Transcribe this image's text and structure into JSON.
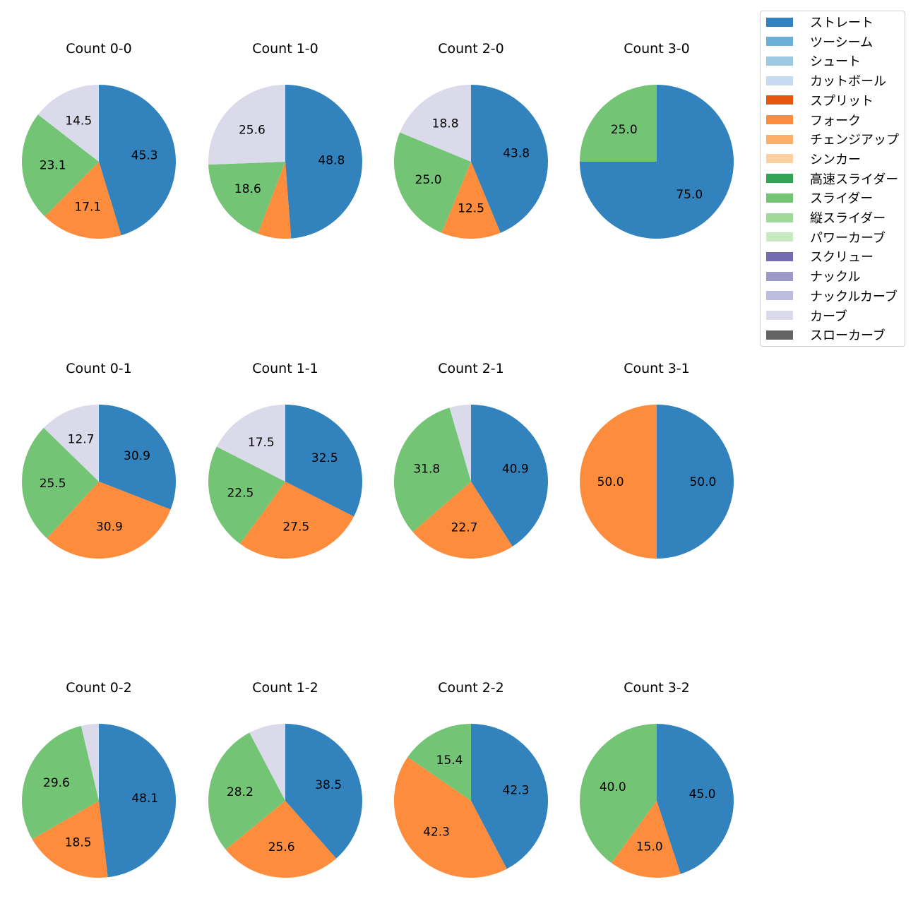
{
  "legend": {
    "items": [
      {
        "label": "ストレート",
        "color": "#3182bd"
      },
      {
        "label": "ツーシーム",
        "color": "#6baed6"
      },
      {
        "label": "シュート",
        "color": "#9ecae1"
      },
      {
        "label": "カットボール",
        "color": "#c6dbef"
      },
      {
        "label": "スプリット",
        "color": "#e6550d"
      },
      {
        "label": "フォーク",
        "color": "#fd8d3c"
      },
      {
        "label": "チェンジアップ",
        "color": "#fdae6b"
      },
      {
        "label": "シンカー",
        "color": "#fdd0a2"
      },
      {
        "label": "高速スライダー",
        "color": "#31a354"
      },
      {
        "label": "スライダー",
        "color": "#74c476"
      },
      {
        "label": "縦スライダー",
        "color": "#a1d99b"
      },
      {
        "label": "パワーカーブ",
        "color": "#c7e9c0"
      },
      {
        "label": "スクリュー",
        "color": "#756bb1"
      },
      {
        "label": "ナックル",
        "color": "#9e9ac8"
      },
      {
        "label": "ナックルカーブ",
        "color": "#bcbddc"
      },
      {
        "label": "カーブ",
        "color": "#dadaeb"
      },
      {
        "label": "スローカーブ",
        "color": "#636363"
      }
    ]
  },
  "chart_data": [
    {
      "type": "pie",
      "title": "Count 0-0",
      "slices": [
        {
          "category": "ストレート",
          "value": 45.3,
          "label": "45.3"
        },
        {
          "category": "フォーク",
          "value": 17.1,
          "label": "17.1"
        },
        {
          "category": "スライダー",
          "value": 23.1,
          "label": "23.1"
        },
        {
          "category": "カーブ",
          "value": 14.5,
          "label": "14.5"
        }
      ]
    },
    {
      "type": "pie",
      "title": "Count 1-0",
      "slices": [
        {
          "category": "ストレート",
          "value": 48.8,
          "label": "48.8"
        },
        {
          "category": "フォーク",
          "value": 7.0,
          "label": ""
        },
        {
          "category": "スライダー",
          "value": 18.6,
          "label": "18.6"
        },
        {
          "category": "カーブ",
          "value": 25.6,
          "label": "25.6"
        }
      ]
    },
    {
      "type": "pie",
      "title": "Count 2-0",
      "slices": [
        {
          "category": "ストレート",
          "value": 43.8,
          "label": "43.8"
        },
        {
          "category": "フォーク",
          "value": 12.5,
          "label": "12.5"
        },
        {
          "category": "スライダー",
          "value": 25.0,
          "label": "25.0"
        },
        {
          "category": "カーブ",
          "value": 18.8,
          "label": "18.8"
        }
      ]
    },
    {
      "type": "pie",
      "title": "Count 3-0",
      "slices": [
        {
          "category": "ストレート",
          "value": 75.0,
          "label": "75.0"
        },
        {
          "category": "スライダー",
          "value": 25.0,
          "label": "25.0"
        }
      ]
    },
    {
      "type": "pie",
      "title": "Count 0-1",
      "slices": [
        {
          "category": "ストレート",
          "value": 30.9,
          "label": "30.9"
        },
        {
          "category": "フォーク",
          "value": 30.9,
          "label": "30.9"
        },
        {
          "category": "スライダー",
          "value": 25.5,
          "label": "25.5"
        },
        {
          "category": "カーブ",
          "value": 12.7,
          "label": "12.7"
        }
      ]
    },
    {
      "type": "pie",
      "title": "Count 1-1",
      "slices": [
        {
          "category": "ストレート",
          "value": 32.5,
          "label": "32.5"
        },
        {
          "category": "フォーク",
          "value": 27.5,
          "label": "27.5"
        },
        {
          "category": "スライダー",
          "value": 22.5,
          "label": "22.5"
        },
        {
          "category": "カーブ",
          "value": 17.5,
          "label": "17.5"
        }
      ]
    },
    {
      "type": "pie",
      "title": "Count 2-1",
      "slices": [
        {
          "category": "ストレート",
          "value": 40.9,
          "label": "40.9"
        },
        {
          "category": "フォーク",
          "value": 22.7,
          "label": "22.7"
        },
        {
          "category": "スライダー",
          "value": 31.8,
          "label": "31.8"
        },
        {
          "category": "カーブ",
          "value": 4.5,
          "label": ""
        }
      ]
    },
    {
      "type": "pie",
      "title": "Count 3-1",
      "slices": [
        {
          "category": "ストレート",
          "value": 50.0,
          "label": "50.0"
        },
        {
          "category": "フォーク",
          "value": 50.0,
          "label": "50.0"
        }
      ]
    },
    {
      "type": "pie",
      "title": "Count 0-2",
      "slices": [
        {
          "category": "ストレート",
          "value": 48.1,
          "label": "48.1"
        },
        {
          "category": "フォーク",
          "value": 18.5,
          "label": "18.5"
        },
        {
          "category": "スライダー",
          "value": 29.6,
          "label": "29.6"
        },
        {
          "category": "カーブ",
          "value": 3.7,
          "label": ""
        }
      ]
    },
    {
      "type": "pie",
      "title": "Count 1-2",
      "slices": [
        {
          "category": "ストレート",
          "value": 38.5,
          "label": "38.5"
        },
        {
          "category": "フォーク",
          "value": 25.6,
          "label": "25.6"
        },
        {
          "category": "スライダー",
          "value": 28.2,
          "label": "28.2"
        },
        {
          "category": "カーブ",
          "value": 7.7,
          "label": ""
        }
      ]
    },
    {
      "type": "pie",
      "title": "Count 2-2",
      "slices": [
        {
          "category": "ストレート",
          "value": 42.3,
          "label": "42.3"
        },
        {
          "category": "フォーク",
          "value": 42.3,
          "label": "42.3"
        },
        {
          "category": "スライダー",
          "value": 15.4,
          "label": "15.4"
        }
      ]
    },
    {
      "type": "pie",
      "title": "Count 3-2",
      "slices": [
        {
          "category": "ストレート",
          "value": 45.0,
          "label": "45.0"
        },
        {
          "category": "フォーク",
          "value": 15.0,
          "label": "15.0"
        },
        {
          "category": "スライダー",
          "value": 40.0,
          "label": "40.0"
        }
      ]
    }
  ]
}
